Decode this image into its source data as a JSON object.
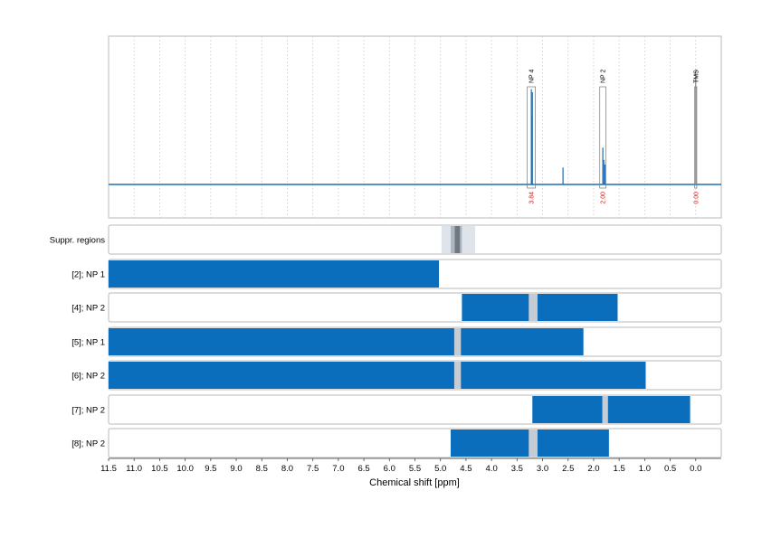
{
  "chart_data": {
    "type": "nmr-spectrum-with-region-bars",
    "xlabel": "Chemical shift [ppm]",
    "xlim": [
      11.5,
      -0.5
    ],
    "x_reversed": true,
    "x_ticks": [
      "11.5",
      "11.0",
      "10.5",
      "10.0",
      "9.5",
      "9.0",
      "8.5",
      "8.0",
      "7.5",
      "7.0",
      "6.5",
      "6.0",
      "5.5",
      "5.0",
      "4.5",
      "4.0",
      "3.5",
      "3.0",
      "2.5",
      "2.0",
      "1.5",
      "1.0",
      "0.5",
      "0.0"
    ],
    "grid": "dotted vertical",
    "spectrum": {
      "baseline": 0.0,
      "peaks": [
        {
          "ppm": 3.22,
          "height": 0.62
        },
        {
          "ppm": 3.2,
          "height": 0.6
        },
        {
          "ppm": 3.21,
          "height": 0.45
        },
        {
          "ppm": 2.6,
          "height": 0.11
        },
        {
          "ppm": 1.82,
          "height": 0.24
        },
        {
          "ppm": 1.8,
          "height": 0.16
        },
        {
          "ppm": 1.78,
          "height": 0.13
        },
        {
          "ppm": 0.0,
          "height": 0.75
        }
      ],
      "annotations": [
        {
          "label": "NP 4",
          "ppm_from": 3.3,
          "ppm_to": 3.14,
          "integral": "3.84",
          "integral_color": "#cc2222"
        },
        {
          "label": "NP 2",
          "ppm_from": 1.88,
          "ppm_to": 1.76,
          "integral": "2.00",
          "integral_color": "#cc2222"
        },
        {
          "label": "TMS",
          "ppm_from": 0.02,
          "ppm_to": -0.02,
          "integral": "0.00",
          "integral_color": "#cc2222"
        }
      ],
      "color": "#1f6fb2"
    },
    "suppression": {
      "label": "Suppr. regions",
      "outer": [
        4.98,
        4.32
      ],
      "inner": [
        4.8,
        4.58
      ],
      "core": [
        4.72,
        4.62
      ]
    },
    "rows": [
      {
        "label": "[2]; NP 1",
        "segments": [
          [
            11.5,
            5.03
          ]
        ]
      },
      {
        "label": "[4]; NP 2",
        "segments": [
          [
            4.58,
            3.27
          ],
          [
            3.1,
            1.53
          ]
        ]
      },
      {
        "label": "[5]; NP 1",
        "segments": [
          [
            11.5,
            4.73
          ],
          [
            4.6,
            2.2
          ]
        ]
      },
      {
        "label": "[6]; NP 2",
        "segments": [
          [
            11.5,
            4.73
          ],
          [
            4.6,
            0.98
          ]
        ]
      },
      {
        "label": "[7]; NP 2",
        "segments": [
          [
            3.2,
            1.83
          ],
          [
            1.72,
            0.11
          ]
        ]
      },
      {
        "label": "[8]; NP 2",
        "segments": [
          [
            4.8,
            3.27
          ],
          [
            3.1,
            1.7
          ]
        ]
      }
    ],
    "bar_color": "#0a6ebd",
    "gap_color": "#c6ccd3"
  }
}
